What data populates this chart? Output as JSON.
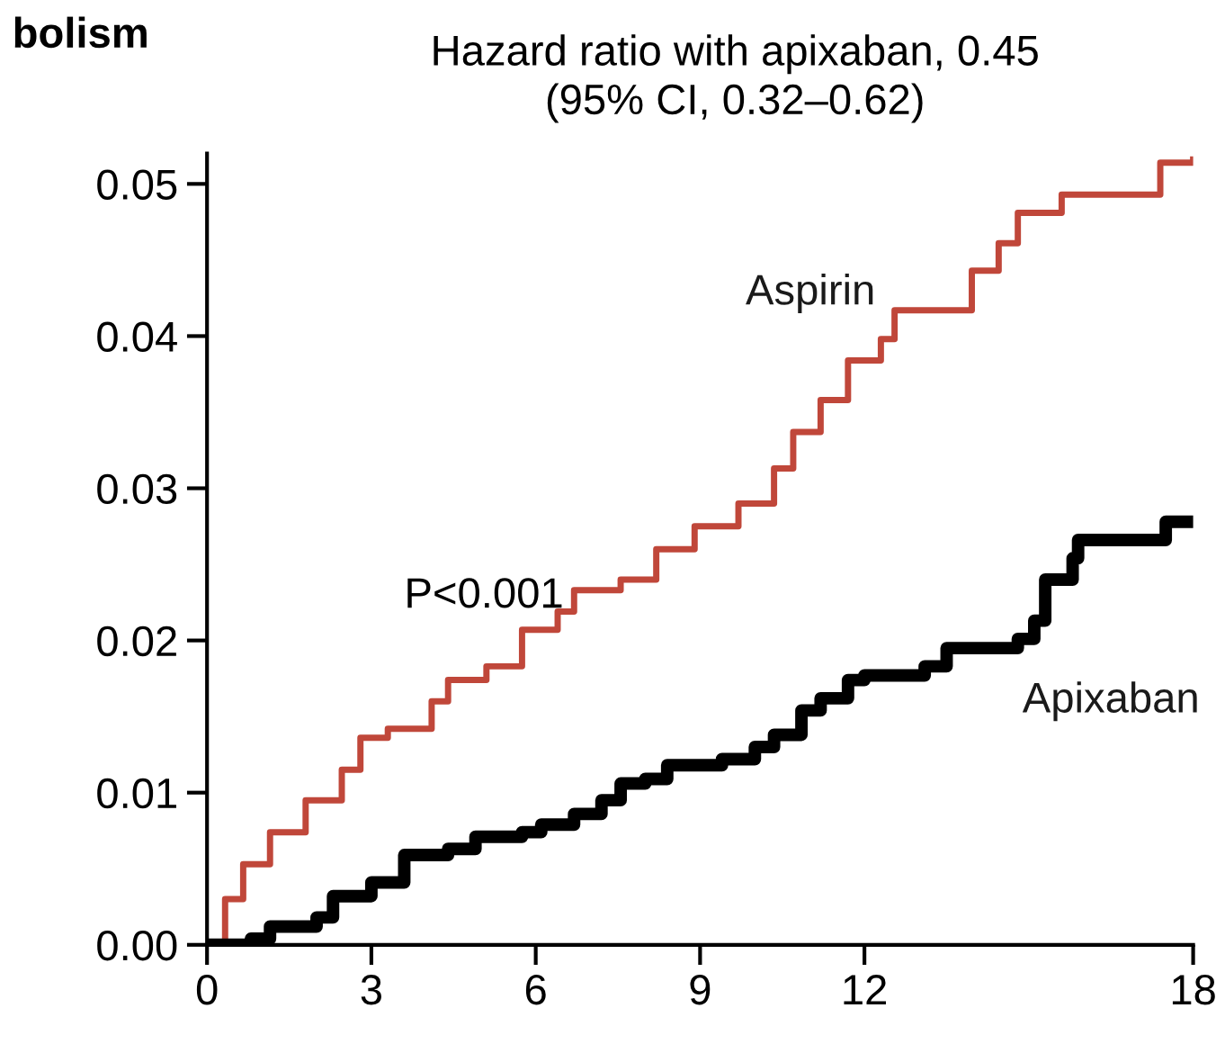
{
  "chart_data": {
    "type": "step",
    "ylabel": "bolism",
    "annotations": [
      "Hazard ratio with apixaban, 0.45\n(95% CI, 0.32–0.62)",
      "P<0.001"
    ],
    "xlim": [
      0,
      18
    ],
    "ylim": [
      0,
      0.052
    ],
    "xticks": [
      0,
      3,
      6,
      9,
      12,
      18
    ],
    "yticks": [
      {
        "value": 0,
        "label": "0.00"
      },
      {
        "value": 0.01,
        "label": "0.01"
      },
      {
        "value": 0.02,
        "label": "0.02"
      },
      {
        "value": 0.03,
        "label": "0.03"
      },
      {
        "value": 0.04,
        "label": "0.04"
      },
      {
        "value": 0.05,
        "label": "0.05"
      }
    ],
    "grid": false,
    "legend": false,
    "series": [
      {
        "name": "Aspirin",
        "color": "#c0473a",
        "x": [
          0,
          0.33,
          0.66,
          1.15,
          1.8,
          2.46,
          2.8,
          3.3,
          4.1,
          4.4,
          5.1,
          5.75,
          6.4,
          6.7,
          7.55,
          8.2,
          8.9,
          9.7,
          10.35,
          10.7,
          11.2,
          11.7,
          12.3,
          12.55,
          13.3,
          13.96,
          14.45,
          14.8,
          15.6,
          17.4,
          18
        ],
        "values": [
          0,
          0.003,
          0.0053,
          0.0074,
          0.0095,
          0.0115,
          0.0136,
          0.0142,
          0.016,
          0.0174,
          0.0183,
          0.0207,
          0.0219,
          0.0233,
          0.024,
          0.026,
          0.0275,
          0.029,
          0.0313,
          0.0337,
          0.0358,
          0.0384,
          0.0398,
          0.0417,
          0.0417,
          0.0443,
          0.0461,
          0.0481,
          0.0493,
          0.0514,
          0.0516
        ]
      },
      {
        "name": "Apixaban",
        "color": "#000000",
        "x": [
          0,
          0.8,
          1.15,
          2.0,
          2.3,
          3.0,
          3.6,
          4.4,
          4.9,
          5.75,
          6.1,
          6.7,
          7.2,
          7.55,
          8.0,
          8.4,
          9.4,
          10.0,
          10.35,
          10.85,
          11.2,
          11.7,
          12.0,
          13.1,
          13.5,
          14.8,
          15.1,
          15.3,
          15.8,
          15.9,
          17.5,
          18
        ],
        "values": [
          0,
          0.0004,
          0.0012,
          0.0018,
          0.0032,
          0.0041,
          0.0059,
          0.0063,
          0.0071,
          0.0074,
          0.0079,
          0.0086,
          0.0095,
          0.0106,
          0.0109,
          0.0118,
          0.0122,
          0.013,
          0.0138,
          0.0154,
          0.0162,
          0.0174,
          0.0177,
          0.0183,
          0.0195,
          0.0201,
          0.0213,
          0.024,
          0.0254,
          0.0266,
          0.0278,
          0.0278
        ]
      }
    ]
  }
}
